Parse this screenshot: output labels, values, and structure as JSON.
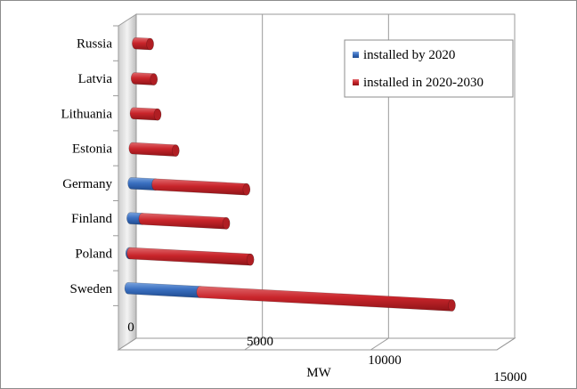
{
  "chart_data": {
    "type": "bar",
    "orientation": "horizontal",
    "stacked": true,
    "style": "3d",
    "categories": [
      "Russia",
      "Latvia",
      "Lithuania",
      "Estonia",
      "Germany",
      "Finland",
      "Poland",
      "Sweden"
    ],
    "series": [
      {
        "name": "installed by 2020",
        "color": "#3A6FC0",
        "values": [
          0,
          0,
          0,
          0,
          1000,
          500,
          50,
          3000
        ]
      },
      {
        "name": "installed in 2020-2030",
        "color": "#C9252B",
        "values": [
          600,
          800,
          1000,
          1800,
          3800,
          3500,
          5000,
          10500
        ]
      }
    ],
    "xlabel": "MW",
    "ylabel": "",
    "xlim": [
      0,
      15000
    ],
    "x_ticks": [
      "0",
      "5000",
      "10000",
      "15000"
    ],
    "grid": true,
    "legend_position": "top-right"
  }
}
